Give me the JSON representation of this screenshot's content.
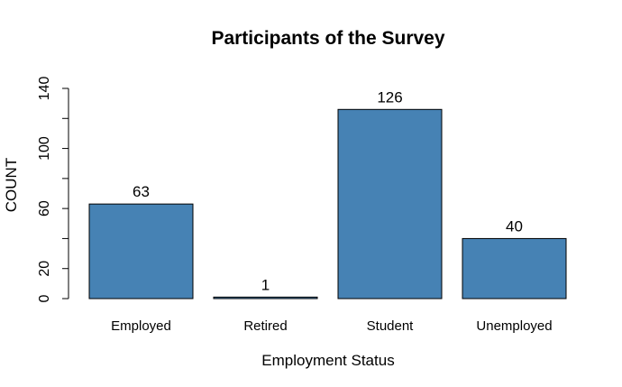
{
  "chart_data": {
    "type": "bar",
    "title": "Participants of the Survey",
    "xlabel": "Employment Status",
    "ylabel": "COUNT",
    "categories": [
      "Employed",
      "Retired",
      "Student",
      "Unemployed"
    ],
    "values": [
      63,
      1,
      126,
      40
    ],
    "data_labels": [
      "63",
      "1",
      "126",
      "40"
    ],
    "ylim": [
      0,
      140
    ],
    "y_ticks": [
      0,
      20,
      40,
      60,
      80,
      100,
      120,
      140
    ],
    "y_tick_labels": [
      "0",
      "20",
      "",
      "60",
      "",
      "100",
      "",
      "140"
    ],
    "bar_color": "#4682B4",
    "grid": false,
    "legend": "none"
  }
}
